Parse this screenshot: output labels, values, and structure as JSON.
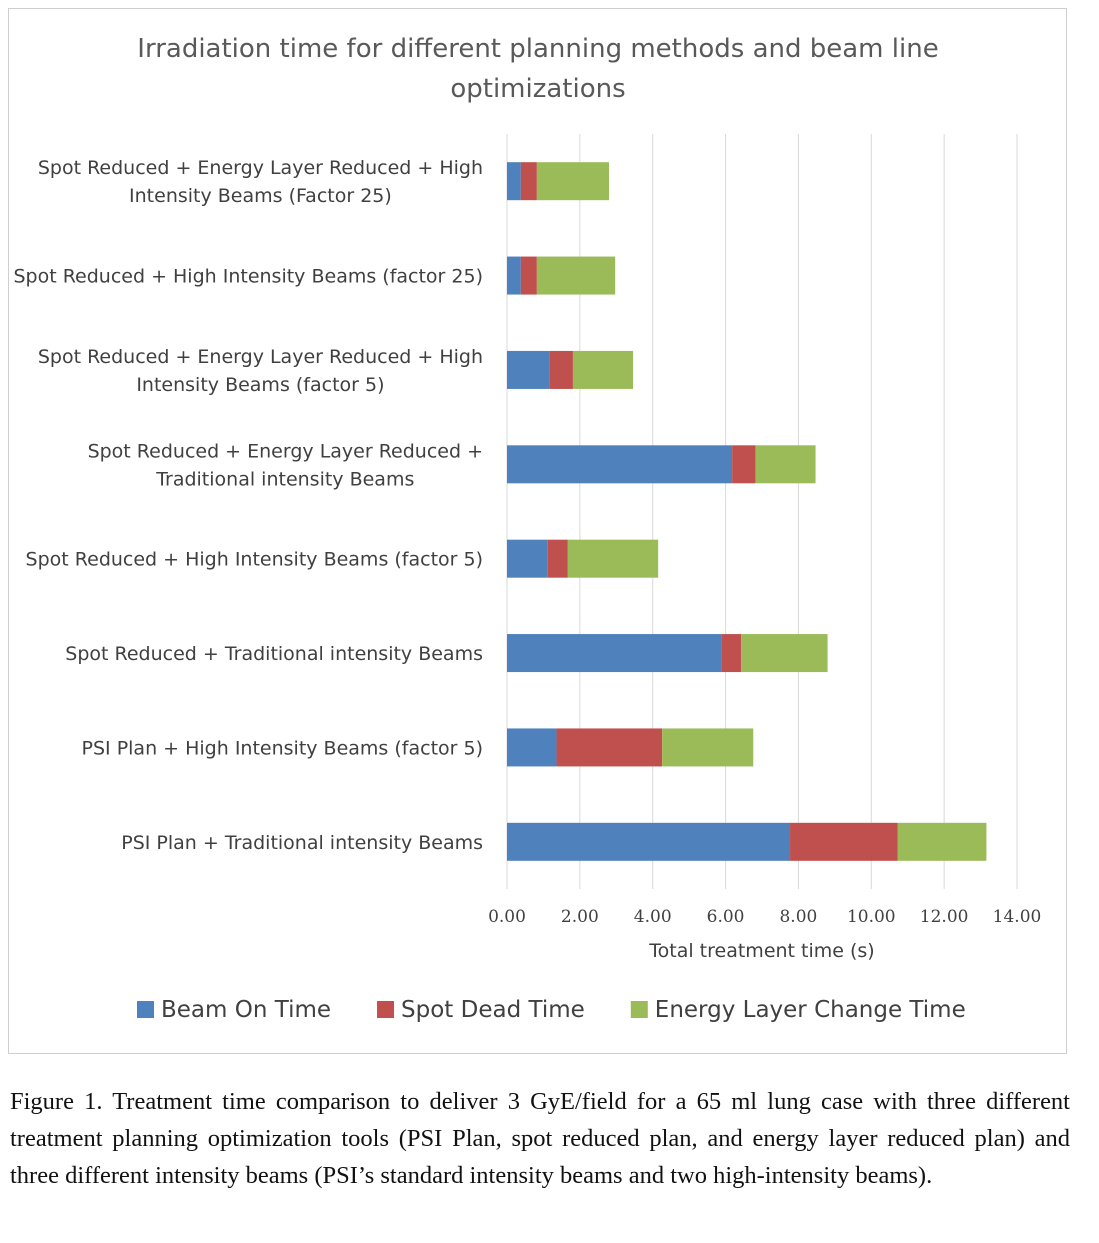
{
  "chart_data": {
    "type": "bar",
    "orientation": "horizontal",
    "stacked": true,
    "title": "Irradiation time for different planning methods and beam line optimizations",
    "title_lines": [
      "Irradiation time for different planning methods and beam line",
      "optimizations"
    ],
    "xlabel": "Total treatment time (s)",
    "xlim": [
      0,
      14
    ],
    "xticks": [
      "0.00",
      "2.00",
      "4.00",
      "6.00",
      "8.00",
      "10.00",
      "12.00",
      "14.00"
    ],
    "grid": "vertical",
    "legend_position": "bottom",
    "categories": [
      {
        "lines": [
          "Spot Reduced + Energy Layer Reduced + High",
          "Intensity Beams (Factor 25)"
        ]
      },
      {
        "lines": [
          "Spot Reduced + High Intensity Beams (factor 25)"
        ]
      },
      {
        "lines": [
          "Spot Reduced + Energy Layer Reduced + High",
          "Intensity Beams (factor 5)"
        ]
      },
      {
        "lines": [
          "Spot Reduced + Energy Layer Reduced +",
          "Traditional intensity Beams"
        ]
      },
      {
        "lines": [
          "Spot Reduced + High Intensity Beams (factor 5)"
        ]
      },
      {
        "lines": [
          "Spot Reduced + Traditional intensity Beams"
        ]
      },
      {
        "lines": [
          "PSI Plan + High Intensity Beams (factor 5)"
        ]
      },
      {
        "lines": [
          "PSI Plan + Traditional intensity Beams"
        ]
      }
    ],
    "series": [
      {
        "name": "Beam On Time",
        "color": "#4f81bd",
        "values": [
          0.38,
          0.38,
          1.17,
          6.18,
          1.12,
          5.9,
          1.36,
          7.77
        ]
      },
      {
        "name": "Spot Dead Time",
        "color": "#c0504d",
        "values": [
          0.44,
          0.44,
          0.64,
          0.64,
          0.55,
          0.53,
          2.9,
          2.95
        ]
      },
      {
        "name": "Energy Layer Change Time",
        "color": "#9bbb59",
        "values": [
          1.98,
          2.15,
          1.65,
          1.65,
          2.48,
          2.37,
          2.5,
          2.44
        ]
      }
    ]
  },
  "caption": "Figure 1. Treatment time comparison to deliver 3 GyE/field for a 65 ml lung case with three different treatment planning optimization tools (PSI Plan, spot reduced plan, and energy layer reduced plan) and three different intensity beams (PSI’s standard intensity beams and two high-intensity beams)."
}
